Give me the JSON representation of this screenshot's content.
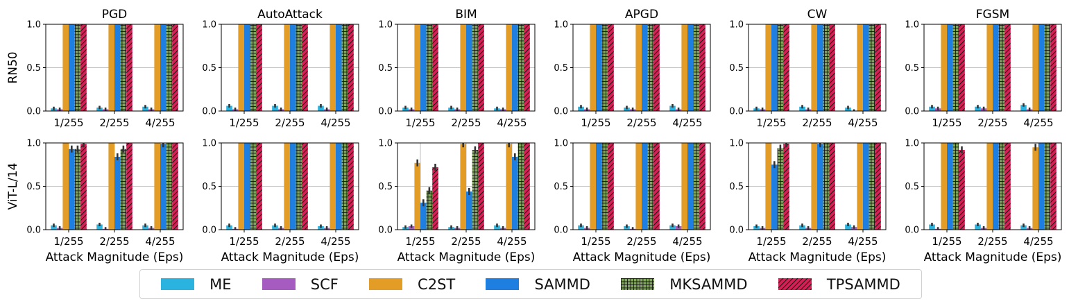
{
  "chart_data": {
    "type": "bar",
    "layout": "grouped bar grid, 2 rows x 6 columns",
    "columns": [
      "PGD",
      "AutoAttack",
      "BIM",
      "APGD",
      "CW",
      "FGSM"
    ],
    "rows": [
      "RN50",
      "ViT-L/14"
    ],
    "categories": [
      "1/255",
      "2/255",
      "4/255"
    ],
    "xlabel": "Attack Magnitude (Eps)",
    "ylim": [
      0.0,
      1.0
    ],
    "yticks": [
      "0.0",
      "0.5",
      "1.0"
    ],
    "grid": true,
    "methods": [
      "ME",
      "SCF",
      "C2ST",
      "SAMMD",
      "MKSAMMD",
      "TPSAMMD"
    ],
    "colors": {
      "ME": "#2bb3e0",
      "SCF": "#a55bbf",
      "C2ST": "#e39c26",
      "SAMMD": "#1f7fe0",
      "MKSAMMD": "#7fa65a",
      "TPSAMMD": "#d81e55"
    },
    "legend_position": "bottom-center",
    "panels": [
      {
        "row": "RN50",
        "column": "PGD",
        "series": [
          {
            "name": "ME",
            "values": [
              0.03,
              0.04,
              0.05
            ]
          },
          {
            "name": "SCF",
            "values": [
              0.02,
              0.02,
              0.02
            ]
          },
          {
            "name": "C2ST",
            "values": [
              1.0,
              1.0,
              1.0
            ]
          },
          {
            "name": "SAMMD",
            "values": [
              1.0,
              1.0,
              1.0
            ]
          },
          {
            "name": "MKSAMMD",
            "values": [
              1.0,
              1.0,
              1.0
            ]
          },
          {
            "name": "TPSAMMD",
            "values": [
              1.0,
              1.0,
              1.0
            ]
          }
        ]
      },
      {
        "row": "RN50",
        "column": "AutoAttack",
        "series": [
          {
            "name": "ME",
            "values": [
              0.06,
              0.06,
              0.06
            ]
          },
          {
            "name": "SCF",
            "values": [
              0.02,
              0.02,
              0.02
            ]
          },
          {
            "name": "C2ST",
            "values": [
              1.0,
              1.0,
              1.0
            ]
          },
          {
            "name": "SAMMD",
            "values": [
              1.0,
              1.0,
              1.0
            ]
          },
          {
            "name": "MKSAMMD",
            "values": [
              1.0,
              1.0,
              1.0
            ]
          },
          {
            "name": "TPSAMMD",
            "values": [
              1.0,
              1.0,
              1.0
            ]
          }
        ]
      },
      {
        "row": "RN50",
        "column": "BIM",
        "series": [
          {
            "name": "ME",
            "values": [
              0.04,
              0.04,
              0.03
            ]
          },
          {
            "name": "SCF",
            "values": [
              0.02,
              0.02,
              0.02
            ]
          },
          {
            "name": "C2ST",
            "values": [
              1.0,
              1.0,
              1.0
            ]
          },
          {
            "name": "SAMMD",
            "values": [
              1.0,
              1.0,
              1.0
            ]
          },
          {
            "name": "MKSAMMD",
            "values": [
              1.0,
              1.0,
              1.0
            ]
          },
          {
            "name": "TPSAMMD",
            "values": [
              1.0,
              1.0,
              1.0
            ]
          }
        ]
      },
      {
        "row": "RN50",
        "column": "APGD",
        "series": [
          {
            "name": "ME",
            "values": [
              0.05,
              0.04,
              0.06
            ]
          },
          {
            "name": "SCF",
            "values": [
              0.02,
              0.02,
              0.02
            ]
          },
          {
            "name": "C2ST",
            "values": [
              1.0,
              1.0,
              1.0
            ]
          },
          {
            "name": "SAMMD",
            "values": [
              1.0,
              1.0,
              1.0
            ]
          },
          {
            "name": "MKSAMMD",
            "values": [
              1.0,
              1.0,
              1.0
            ]
          },
          {
            "name": "TPSAMMD",
            "values": [
              1.0,
              1.0,
              1.0
            ]
          }
        ]
      },
      {
        "row": "RN50",
        "column": "CW",
        "series": [
          {
            "name": "ME",
            "values": [
              0.03,
              0.05,
              0.04
            ]
          },
          {
            "name": "SCF",
            "values": [
              0.02,
              0.02,
              0.0
            ]
          },
          {
            "name": "C2ST",
            "values": [
              1.0,
              1.0,
              1.0
            ]
          },
          {
            "name": "SAMMD",
            "values": [
              1.0,
              1.0,
              1.0
            ]
          },
          {
            "name": "MKSAMMD",
            "values": [
              1.0,
              1.0,
              1.0
            ]
          },
          {
            "name": "TPSAMMD",
            "values": [
              1.0,
              1.0,
              1.0
            ]
          }
        ]
      },
      {
        "row": "RN50",
        "column": "FGSM",
        "series": [
          {
            "name": "ME",
            "values": [
              0.05,
              0.05,
              0.07
            ]
          },
          {
            "name": "SCF",
            "values": [
              0.03,
              0.03,
              0.02
            ]
          },
          {
            "name": "C2ST",
            "values": [
              1.0,
              1.0,
              1.0
            ]
          },
          {
            "name": "SAMMD",
            "values": [
              1.0,
              1.0,
              1.0
            ]
          },
          {
            "name": "MKSAMMD",
            "values": [
              1.0,
              1.0,
              1.0
            ]
          },
          {
            "name": "TPSAMMD",
            "values": [
              1.0,
              1.0,
              1.0
            ]
          }
        ]
      },
      {
        "row": "ViT-L/14",
        "column": "PGD",
        "series": [
          {
            "name": "ME",
            "values": [
              0.05,
              0.06,
              0.05
            ]
          },
          {
            "name": "SCF",
            "values": [
              0.02,
              0.01,
              0.02
            ]
          },
          {
            "name": "C2ST",
            "values": [
              1.0,
              1.0,
              1.0
            ]
          },
          {
            "name": "SAMMD",
            "values": [
              0.93,
              0.84,
              0.99
            ]
          },
          {
            "name": "MKSAMMD",
            "values": [
              0.93,
              0.93,
              1.0
            ]
          },
          {
            "name": "TPSAMMD",
            "values": [
              0.99,
              1.0,
              1.0
            ]
          }
        ]
      },
      {
        "row": "ViT-L/14",
        "column": "AutoAttack",
        "series": [
          {
            "name": "ME",
            "values": [
              0.05,
              0.05,
              0.04
            ]
          },
          {
            "name": "SCF",
            "values": [
              0.01,
              0.02,
              0.02
            ]
          },
          {
            "name": "C2ST",
            "values": [
              1.0,
              1.0,
              1.0
            ]
          },
          {
            "name": "SAMMD",
            "values": [
              1.0,
              1.0,
              1.0
            ]
          },
          {
            "name": "MKSAMMD",
            "values": [
              1.0,
              1.0,
              1.0
            ]
          },
          {
            "name": "TPSAMMD",
            "values": [
              1.0,
              1.0,
              1.0
            ]
          }
        ]
      },
      {
        "row": "ViT-L/14",
        "column": "BIM",
        "series": [
          {
            "name": "ME",
            "values": [
              0.03,
              0.03,
              0.05
            ]
          },
          {
            "name": "SCF",
            "values": [
              0.04,
              0.02,
              0.02
            ]
          },
          {
            "name": "C2ST",
            "values": [
              0.77,
              0.99,
              0.99
            ]
          },
          {
            "name": "SAMMD",
            "values": [
              0.31,
              0.44,
              0.84
            ]
          },
          {
            "name": "MKSAMMD",
            "values": [
              0.45,
              0.92,
              1.0
            ]
          },
          {
            "name": "TPSAMMD",
            "values": [
              0.72,
              1.0,
              1.0
            ]
          }
        ]
      },
      {
        "row": "ViT-L/14",
        "column": "APGD",
        "series": [
          {
            "name": "ME",
            "values": [
              0.05,
              0.04,
              0.05
            ]
          },
          {
            "name": "SCF",
            "values": [
              0.02,
              0.01,
              0.04
            ]
          },
          {
            "name": "C2ST",
            "values": [
              1.0,
              1.0,
              1.0
            ]
          },
          {
            "name": "SAMMD",
            "values": [
              1.0,
              1.0,
              1.0
            ]
          },
          {
            "name": "MKSAMMD",
            "values": [
              1.0,
              1.0,
              1.0
            ]
          },
          {
            "name": "TPSAMMD",
            "values": [
              1.0,
              1.0,
              1.0
            ]
          }
        ]
      },
      {
        "row": "ViT-L/14",
        "column": "CW",
        "series": [
          {
            "name": "ME",
            "values": [
              0.04,
              0.05,
              0.06
            ]
          },
          {
            "name": "SCF",
            "values": [
              0.02,
              0.02,
              0.03
            ]
          },
          {
            "name": "C2ST",
            "values": [
              1.0,
              1.0,
              1.0
            ]
          },
          {
            "name": "SAMMD",
            "values": [
              0.75,
              0.99,
              1.0
            ]
          },
          {
            "name": "MKSAMMD",
            "values": [
              0.94,
              1.0,
              1.0
            ]
          },
          {
            "name": "TPSAMMD",
            "values": [
              0.99,
              1.0,
              1.0
            ]
          }
        ]
      },
      {
        "row": "ViT-L/14",
        "column": "FGSM",
        "series": [
          {
            "name": "ME",
            "values": [
              0.06,
              0.06,
              0.05
            ]
          },
          {
            "name": "SCF",
            "values": [
              0.01,
              0.02,
              0.02
            ]
          },
          {
            "name": "C2ST",
            "values": [
              1.0,
              1.0,
              0.95
            ]
          },
          {
            "name": "SAMMD",
            "values": [
              1.0,
              1.0,
              1.0
            ]
          },
          {
            "name": "MKSAMMD",
            "values": [
              1.0,
              1.0,
              1.0
            ]
          },
          {
            "name": "TPSAMMD",
            "values": [
              0.92,
              1.0,
              1.0
            ]
          }
        ]
      }
    ]
  }
}
